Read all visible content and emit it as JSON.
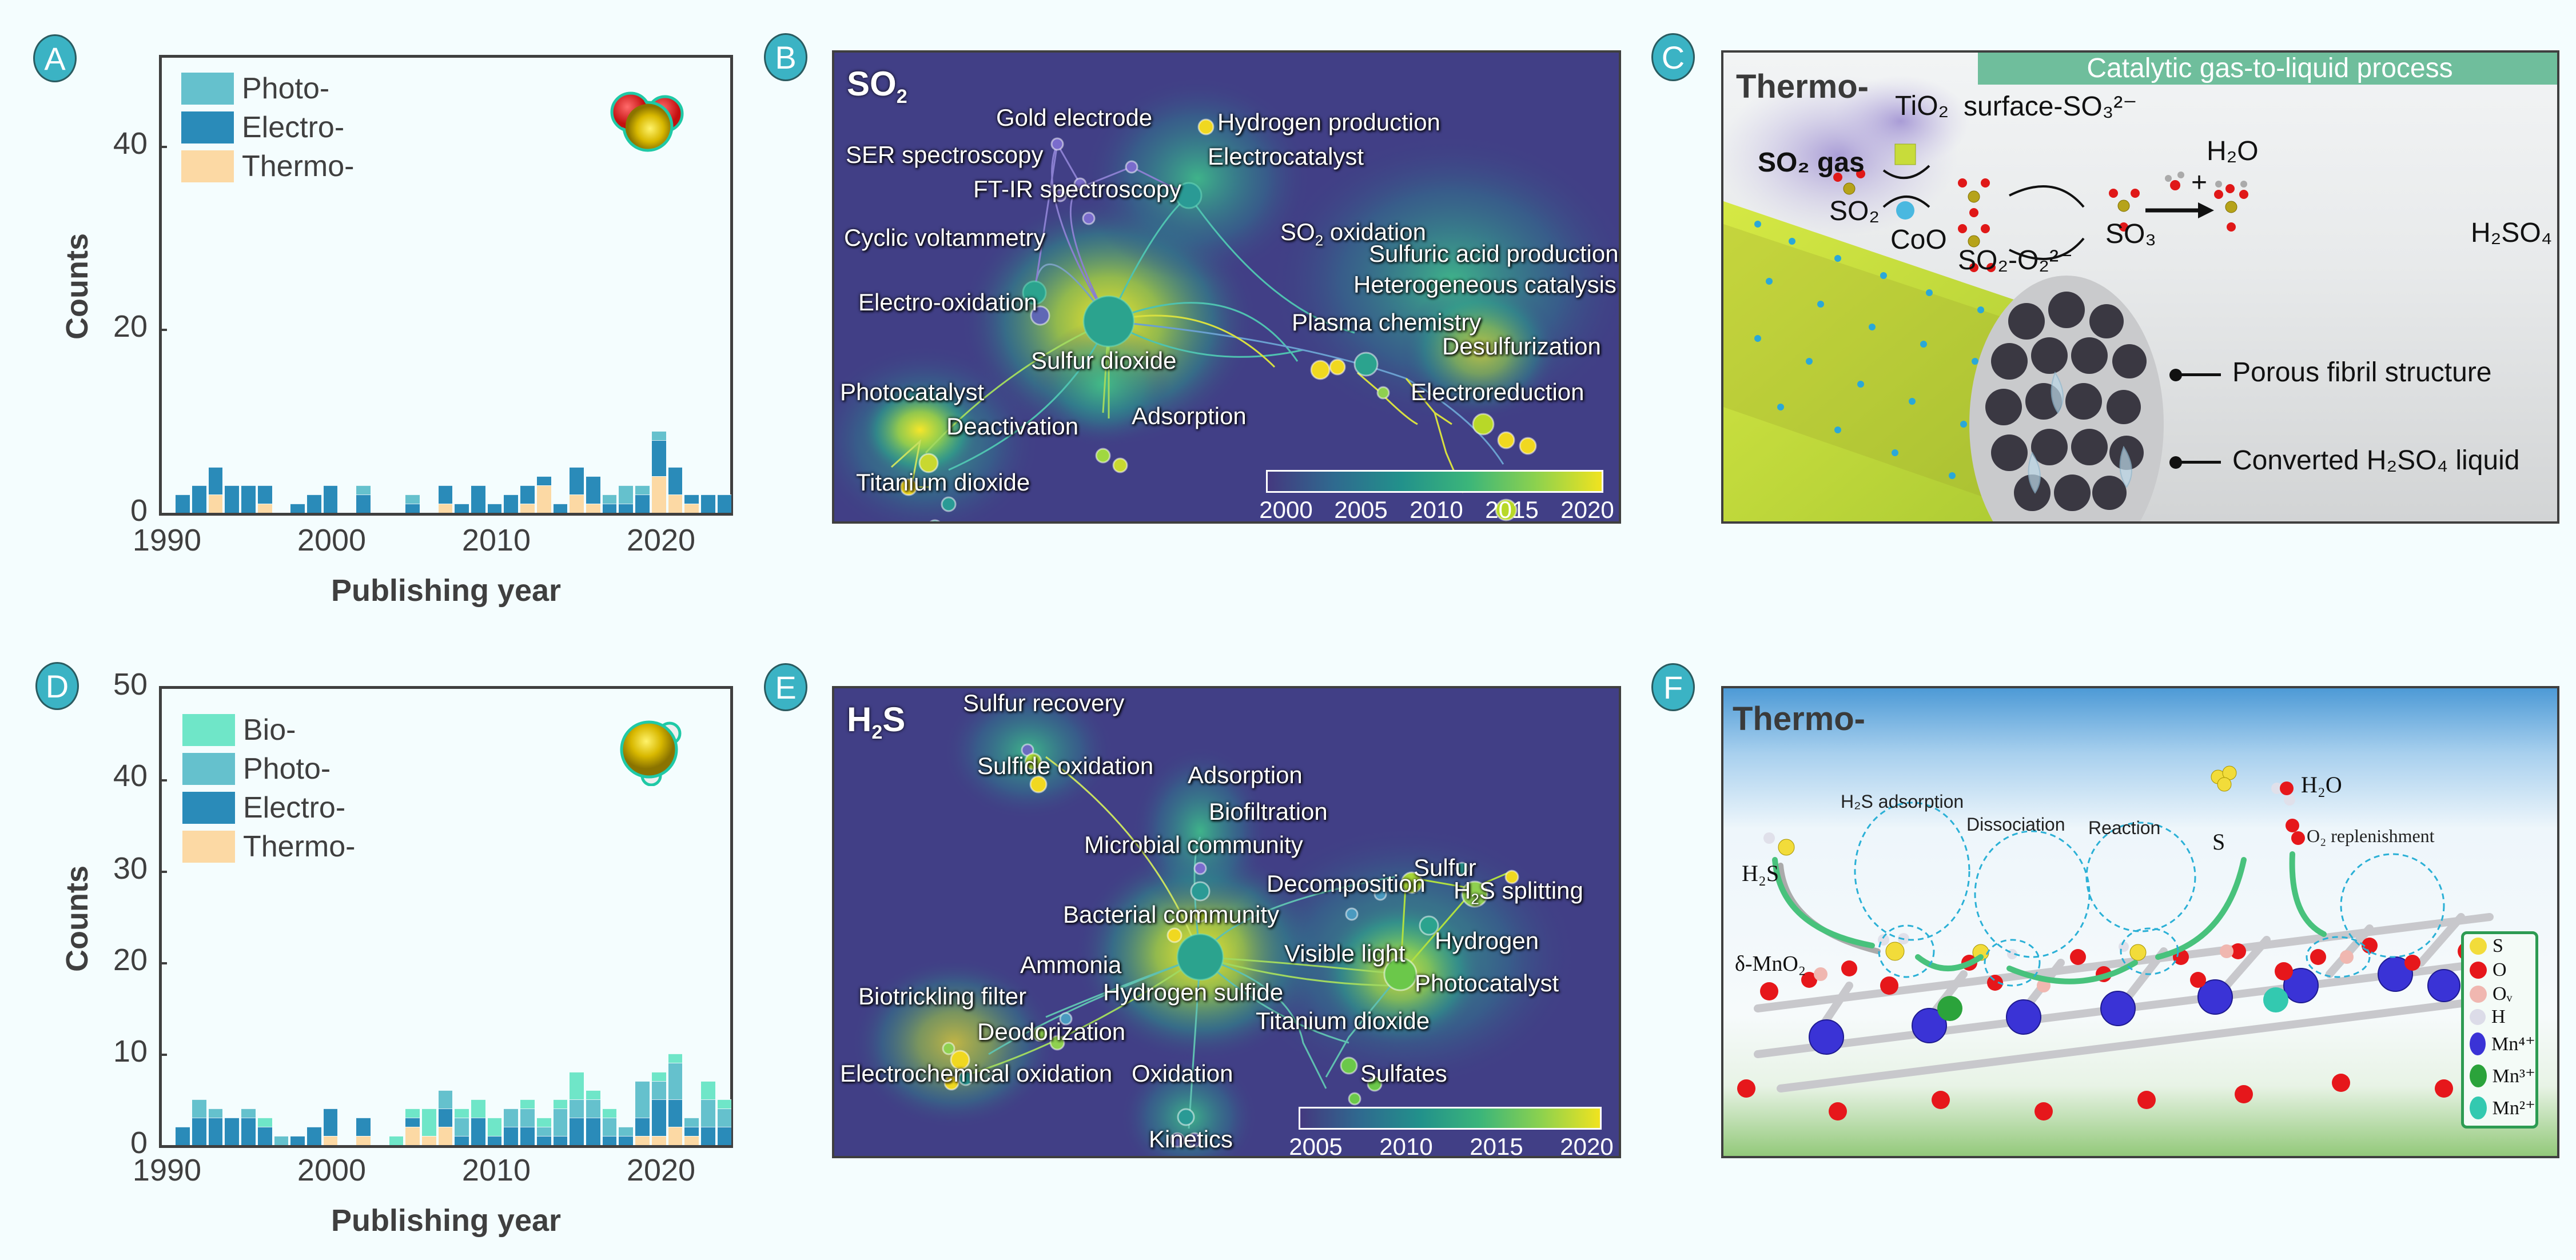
{
  "panels": {
    "A": {
      "label": "A"
    },
    "B": {
      "label": "B"
    },
    "C": {
      "label": "C"
    },
    "D": {
      "label": "D"
    },
    "E": {
      "label": "E"
    },
    "F": {
      "label": "F"
    }
  },
  "colors": {
    "bio": "#6fe6c8",
    "photo": "#65c1cd",
    "electro": "#2a8bb9",
    "thermo": "#fcd9a4",
    "panel_label_bg": "#3bb3c4",
    "network_bg": "#413f86",
    "header_strip": "#6fbe9c"
  },
  "chart_data": [
    {
      "id": "A",
      "type": "bar",
      "stacked": true,
      "title": "",
      "xlabel": "Publishing year",
      "ylabel": "Counts",
      "ylim": [
        0,
        50
      ],
      "yticks": [
        0,
        20,
        40
      ],
      "xticks": [
        1990,
        2000,
        2010,
        2020
      ],
      "xlim": [
        1990,
        2024
      ],
      "legend": [
        "Photo-",
        "Electro-",
        "Thermo-"
      ],
      "legend_position": "upper left",
      "icon": "SO2 molecule",
      "categories": [
        1991,
        1992,
        1993,
        1994,
        1995,
        1996,
        1997,
        1998,
        1999,
        2000,
        2001,
        2002,
        2003,
        2004,
        2005,
        2006,
        2007,
        2008,
        2009,
        2010,
        2011,
        2012,
        2013,
        2014,
        2015,
        2016,
        2017,
        2018,
        2019,
        2020,
        2021,
        2022,
        2023,
        2024
      ],
      "series": [
        {
          "name": "Thermo-",
          "values": [
            0,
            0,
            2,
            0,
            0,
            1,
            0,
            0,
            0,
            0,
            0,
            0,
            0,
            0,
            0,
            0,
            1,
            0,
            0,
            0,
            0,
            1,
            3,
            0,
            2,
            1,
            0,
            0,
            0,
            4,
            2,
            1,
            0,
            0
          ]
        },
        {
          "name": "Electro-",
          "values": [
            2,
            3,
            3,
            3,
            3,
            2,
            0,
            1,
            2,
            3,
            0,
            2,
            0,
            0,
            1,
            0,
            2,
            1,
            3,
            1,
            2,
            2,
            1,
            1,
            3,
            3,
            1,
            1,
            2,
            4,
            3,
            1,
            2,
            2
          ]
        },
        {
          "name": "Photo-",
          "values": [
            0,
            0,
            0,
            0,
            0,
            0,
            0,
            0,
            0,
            0,
            0,
            1,
            0,
            0,
            1,
            0,
            0,
            0,
            0,
            0,
            0,
            0,
            0,
            0,
            0,
            0,
            1,
            2,
            1,
            1,
            0,
            0,
            0,
            0
          ]
        }
      ]
    },
    {
      "id": "D",
      "type": "bar",
      "stacked": true,
      "title": "",
      "xlabel": "Publishing year",
      "ylabel": "Counts",
      "ylim": [
        0,
        50
      ],
      "yticks": [
        0,
        10,
        20,
        30,
        40,
        50
      ],
      "xticks": [
        1990,
        2000,
        2010,
        2020
      ],
      "xlim": [
        1990,
        2024
      ],
      "legend": [
        "Bio-",
        "Photo-",
        "Electro-",
        "Thermo-"
      ],
      "legend_position": "upper left",
      "icon": "H2S molecule",
      "categories": [
        1991,
        1992,
        1993,
        1994,
        1995,
        1996,
        1997,
        1998,
        1999,
        2000,
        2001,
        2002,
        2003,
        2004,
        2005,
        2006,
        2007,
        2008,
        2009,
        2010,
        2011,
        2012,
        2013,
        2014,
        2015,
        2016,
        2017,
        2018,
        2019,
        2020,
        2021,
        2022,
        2023,
        2024
      ],
      "series": [
        {
          "name": "Thermo-",
          "values": [
            0,
            0,
            0,
            0,
            0,
            0,
            0,
            0,
            0,
            1,
            0,
            1,
            0,
            0,
            2,
            1,
            2,
            0,
            0,
            0,
            0,
            0,
            0,
            0,
            0,
            0,
            0,
            0,
            1,
            1,
            2,
            1,
            0,
            0
          ]
        },
        {
          "name": "Electro-",
          "values": [
            2,
            3,
            3,
            3,
            3,
            2,
            0,
            1,
            2,
            3,
            0,
            2,
            0,
            0,
            1,
            0,
            2,
            1,
            3,
            1,
            2,
            2,
            1,
            1,
            3,
            3,
            1,
            1,
            2,
            4,
            3,
            1,
            2,
            2
          ]
        },
        {
          "name": "Photo-",
          "values": [
            0,
            2,
            1,
            0,
            1,
            0,
            1,
            0,
            0,
            0,
            0,
            0,
            0,
            0,
            0,
            0,
            2,
            2,
            0,
            0,
            2,
            2,
            1,
            3,
            2,
            2,
            2,
            1,
            4,
            2,
            4,
            1,
            3,
            2
          ]
        },
        {
          "name": "Bio-",
          "values": [
            0,
            0,
            0,
            0,
            0,
            1,
            0,
            0,
            0,
            0,
            0,
            0,
            0,
            1,
            1,
            3,
            0,
            1,
            2,
            2,
            0,
            1,
            1,
            1,
            3,
            1,
            1,
            0,
            0,
            1,
            1,
            0,
            2,
            1
          ]
        }
      ]
    }
  ],
  "chartA": {
    "ylabel": "Counts",
    "xlabel": "Publishing year",
    "yticks": [
      "0",
      "20",
      "40"
    ],
    "xticks": [
      "1990",
      "2000",
      "2010",
      "2020"
    ],
    "legend": [
      "Photo-",
      "Electro-",
      "Thermo-"
    ]
  },
  "chartD": {
    "ylabel": "Counts",
    "xlabel": "Publishing year",
    "yticks": [
      "0",
      "10",
      "20",
      "30",
      "40",
      "50"
    ],
    "xticks": [
      "1990",
      "2000",
      "2010",
      "2020"
    ],
    "legend": [
      "Bio-",
      "Photo-",
      "Electro-",
      "Thermo-"
    ]
  },
  "networkB": {
    "title_main": "SO",
    "title_sub": "2",
    "labels": {
      "gold_electrode": "Gold electrode",
      "hydrogen_production": "Hydrogen production",
      "ser_spectroscopy": "SER spectroscopy",
      "electrocatalyst": "Electrocatalyst",
      "ftir_spectroscopy": "FT-IR spectroscopy",
      "cyclic_voltammetry": "Cyclic voltammetry",
      "so2_oxidation_main": "SO",
      "so2_oxidation_sub": "2",
      "so2_oxidation_rest": " oxidation",
      "sulfuric_acid_production": "Sulfuric acid production",
      "heterogeneous_catalysis": "Heterogeneous catalysis",
      "electro_oxidation": "Electro-oxidation",
      "plasma_chemistry": "Plasma chemistry",
      "desulfurization": "Desulfurization",
      "sulfur_dioxide": "Sulfur dioxide",
      "photocatalyst": "Photocatalyst",
      "electroreduction": "Electroreduction",
      "adsorption": "Adsorption",
      "deactivation": "Deactivation",
      "titanium_dioxide": "Titanium dioxide"
    },
    "colorbar": [
      "2000",
      "2005",
      "2010",
      "2015",
      "2020"
    ]
  },
  "networkE": {
    "title_main": "H",
    "title_sub": "2",
    "title_rest": "S",
    "labels": {
      "sulfur_recovery": "Sulfur recovery",
      "sulfide_oxidation": "Sulfide oxidation",
      "adsorption": "Adsorption",
      "biofiltration": "Biofiltration",
      "microbial_community": "Microbial community",
      "sulfur": "Sulfur",
      "decomposition": "Decomposition",
      "h2s_splitting_main": "H",
      "h2s_splitting_sub": "2",
      "h2s_splitting_rest": "S splitting",
      "bacterial_community": "Bacterial community",
      "hydrogen": "Hydrogen",
      "visible_light": "Visible light",
      "ammonia": "Ammonia",
      "photocatalyst": "Photocatalyst",
      "biotrickling_filter": "Biotrickling filter",
      "hydrogen_sulfide": "Hydrogen sulfide",
      "titanium_dioxide": "Titanium dioxide",
      "deodorization": "Deodorization",
      "electrochemical_oxidation": "Electrochemical oxidation",
      "oxidation": "Oxidation",
      "sulfates": "Sulfates",
      "kinetics": "Kinetics"
    },
    "colorbar": [
      "2005",
      "2010",
      "2015",
      "2020"
    ]
  },
  "panelC": {
    "title": "Thermo-",
    "header": "Catalytic gas-to-liquid process",
    "so2_gas": "SO₂ gas",
    "tio2": "TiO₂",
    "coo": "CoO",
    "surface_so3": "surface-SO₃²⁻",
    "so2": "SO₂",
    "so2_o2": "SO₂-O₂²⁻",
    "so3": "SO₃",
    "h2o": "H₂O",
    "plus": "+",
    "h2so4": "H₂SO₄",
    "callout_porous": "Porous fibril structure",
    "callout_liquid": "Converted H₂SO₄ liquid"
  },
  "panelF": {
    "title": "Thermo-",
    "h2s": "H₂S",
    "h2s_adsorption": "H₂S adsorption",
    "dissociation": "Dissociation",
    "reaction": "Reaction",
    "s": "S",
    "h2o": "H₂O",
    "o2_replenishment": "O₂ replenishment",
    "delta_mno2": "δ-MnO₂",
    "mn": "Mn",
    "legend": [
      {
        "label": "S",
        "color": "#f2dc3a"
      },
      {
        "label": "O",
        "color": "#e6171b"
      },
      {
        "label": "Oᵥ",
        "color": "#f0b7b0"
      },
      {
        "label": "H",
        "color": "#dcdce8"
      },
      {
        "label": "Mn⁴⁺",
        "color": "#3a33d6"
      },
      {
        "label": "Mn³⁺",
        "color": "#2ba33b"
      },
      {
        "label": "Mn²⁺",
        "color": "#33c9b0"
      }
    ]
  }
}
